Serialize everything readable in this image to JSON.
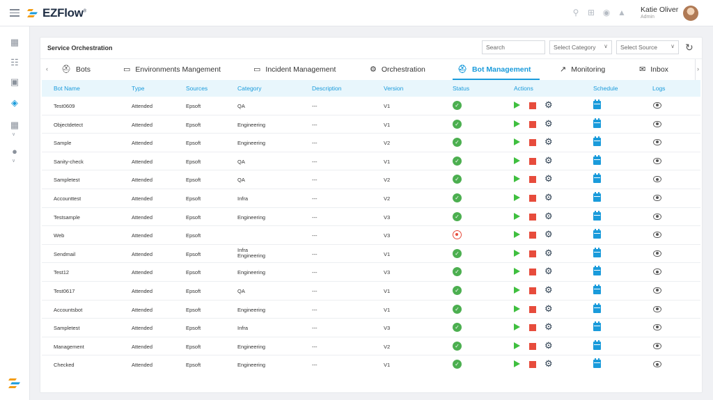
{
  "app": {
    "name": "EZFlow",
    "trademark": "®"
  },
  "user": {
    "name": "Katie Oliver",
    "role": "Admin"
  },
  "page": {
    "title": "Service Orchestration"
  },
  "controls": {
    "search_placeholder": "Search",
    "category_select": "Select Category",
    "source_select": "Select Source"
  },
  "tabs": [
    {
      "label": "Bots",
      "icon": "robot-icon"
    },
    {
      "label": "Environments Mangement",
      "icon": "monitor-icon"
    },
    {
      "label": "Incident Management",
      "icon": "monitor-icon"
    },
    {
      "label": "Orchestration",
      "icon": "gear-icon"
    },
    {
      "label": "Bot Management",
      "icon": "robot-icon",
      "active": true
    },
    {
      "label": "Monitoring",
      "icon": "chart-line-icon"
    },
    {
      "label": "Inbox",
      "icon": "envelope-icon"
    }
  ],
  "table": {
    "headers": [
      "Bot Name",
      "Type",
      "Sources",
      "Category",
      "Description",
      "Version",
      "Status",
      "Actions",
      "Schedule",
      "Logs"
    ],
    "rows": [
      {
        "name": "Test0609",
        "type": "Attended",
        "source": "Epsoft",
        "category": "QA",
        "category2": "",
        "description": "---",
        "version": "V1",
        "status": "ok"
      },
      {
        "name": "Objectdetect",
        "type": "Attended",
        "source": "Epsoft",
        "category": "Engineering",
        "category2": "",
        "description": "---",
        "version": "V1",
        "status": "ok"
      },
      {
        "name": "Sample",
        "type": "Attended",
        "source": "Epsoft",
        "category": "Engineering",
        "category2": "",
        "description": "---",
        "version": "V2",
        "status": "ok"
      },
      {
        "name": "Sanity-check",
        "type": "Attended",
        "source": "Epsoft",
        "category": "QA",
        "category2": "",
        "description": "---",
        "version": "V1",
        "status": "ok"
      },
      {
        "name": "Sampletest",
        "type": "Attended",
        "source": "Epsoft",
        "category": "QA",
        "category2": "",
        "description": "---",
        "version": "V2",
        "status": "ok"
      },
      {
        "name": "Accounttest",
        "type": "Attended",
        "source": "Epsoft",
        "category": "Infra",
        "category2": "",
        "description": "---",
        "version": "V2",
        "status": "ok"
      },
      {
        "name": "Testsample",
        "type": "Attended",
        "source": "Epsoft",
        "category": "Engineering",
        "category2": "",
        "description": "---",
        "version": "V3",
        "status": "ok"
      },
      {
        "name": "Web",
        "type": "Attended",
        "source": "Epsoft",
        "category": "",
        "category2": "",
        "description": "---",
        "version": "V3",
        "status": "stopped"
      },
      {
        "name": "Sendmail",
        "type": "Attended",
        "source": "Epsoft",
        "category": "Infra",
        "category2": "Engineering",
        "description": "---",
        "version": "V1",
        "status": "ok"
      },
      {
        "name": "Test12",
        "type": "Attended",
        "source": "Epsoft",
        "category": "Engineering",
        "category2": "",
        "description": "---",
        "version": "V3",
        "status": "ok"
      },
      {
        "name": "Test0617",
        "type": "Attended",
        "source": "Epsoft",
        "category": "QA",
        "category2": "",
        "description": "---",
        "version": "V1",
        "status": "ok"
      },
      {
        "name": "Accountsbot",
        "type": "Attended",
        "source": "Epsoft",
        "category": "Engineering",
        "category2": "",
        "description": "---",
        "version": "V1",
        "status": "ok"
      },
      {
        "name": "Sampletest",
        "type": "Attended",
        "source": "Epsoft",
        "category": "Infra",
        "category2": "",
        "description": "---",
        "version": "V3",
        "status": "ok"
      },
      {
        "name": "Management",
        "type": "Attended",
        "source": "Epsoft",
        "category": "Engineering",
        "category2": "",
        "description": "---",
        "version": "V2",
        "status": "ok"
      },
      {
        "name": "Checked",
        "type": "Attended",
        "source": "Epsoft",
        "category": "Engineering",
        "category2": "",
        "description": "---",
        "version": "V1",
        "status": "ok"
      }
    ]
  },
  "colors": {
    "accent": "#1a9bdb",
    "success": "#4caf50",
    "danger": "#e74c3c",
    "play": "#3fbf3f"
  }
}
